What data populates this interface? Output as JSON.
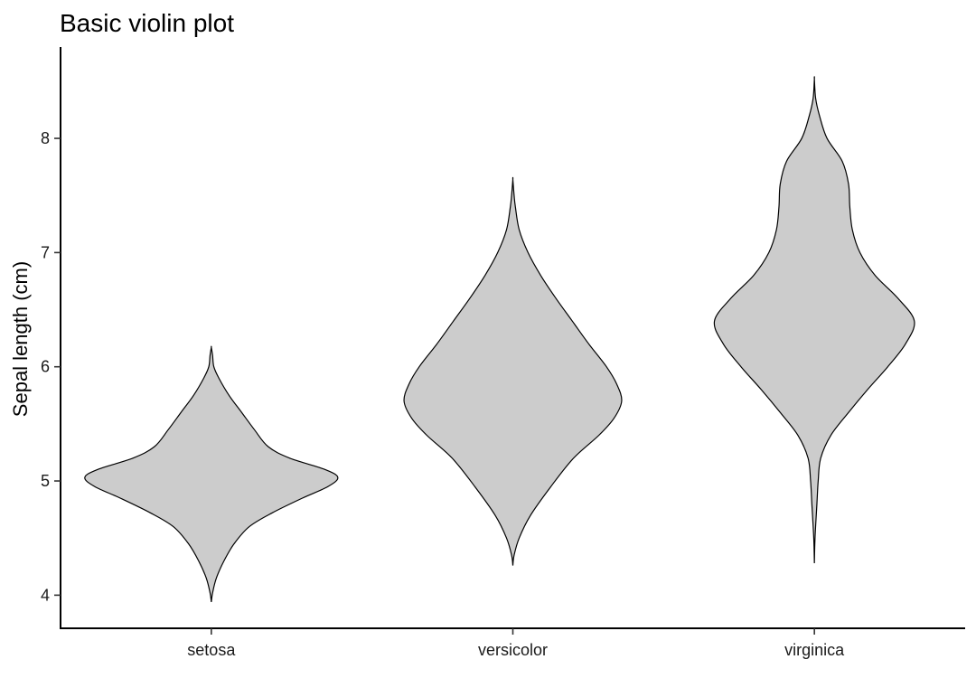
{
  "chart_data": {
    "type": "violin",
    "title": "Basic violin plot",
    "xlabel": "",
    "ylabel": "Sepal length (cm)",
    "ylim": [
      3.71,
      8.8
    ],
    "yticks": [
      4,
      5,
      6,
      7,
      8
    ],
    "grid": false,
    "legend": "none",
    "fill_color": "#cccccc",
    "stroke_color": "#000000",
    "categories": [
      "setosa",
      "versicolor",
      "virginica"
    ],
    "violins": [
      {
        "category": "setosa",
        "range": [
          4.3,
          5.8
        ],
        "profile": [
          [
            3.94,
            0.0
          ],
          [
            4.02,
            0.01
          ],
          [
            4.15,
            0.04
          ],
          [
            4.3,
            0.1
          ],
          [
            4.45,
            0.18
          ],
          [
            4.6,
            0.3
          ],
          [
            4.72,
            0.48
          ],
          [
            4.85,
            0.72
          ],
          [
            4.95,
            0.92
          ],
          [
            5.03,
            1.0
          ],
          [
            5.1,
            0.9
          ],
          [
            5.2,
            0.62
          ],
          [
            5.3,
            0.45
          ],
          [
            5.45,
            0.34
          ],
          [
            5.6,
            0.24
          ],
          [
            5.75,
            0.14
          ],
          [
            5.9,
            0.06
          ],
          [
            6.0,
            0.02
          ],
          [
            6.1,
            0.01
          ],
          [
            6.17,
            0.0
          ]
        ]
      },
      {
        "category": "versicolor",
        "range": [
          4.9,
          7.0
        ],
        "profile": [
          [
            4.26,
            0.0
          ],
          [
            4.35,
            0.01
          ],
          [
            4.5,
            0.05
          ],
          [
            4.7,
            0.14
          ],
          [
            4.95,
            0.3
          ],
          [
            5.2,
            0.48
          ],
          [
            5.4,
            0.68
          ],
          [
            5.55,
            0.8
          ],
          [
            5.7,
            0.86
          ],
          [
            5.85,
            0.82
          ],
          [
            6.0,
            0.74
          ],
          [
            6.2,
            0.6
          ],
          [
            6.4,
            0.47
          ],
          [
            6.6,
            0.34
          ],
          [
            6.8,
            0.22
          ],
          [
            7.0,
            0.12
          ],
          [
            7.2,
            0.05
          ],
          [
            7.4,
            0.02
          ],
          [
            7.5,
            0.01
          ],
          [
            7.64,
            0.0
          ]
        ]
      },
      {
        "category": "virginica",
        "range": [
          4.9,
          7.9
        ],
        "profile": [
          [
            4.28,
            0.0
          ],
          [
            4.5,
            0.005
          ],
          [
            4.8,
            0.02
          ],
          [
            5.0,
            0.03
          ],
          [
            5.2,
            0.05
          ],
          [
            5.4,
            0.13
          ],
          [
            5.6,
            0.27
          ],
          [
            5.8,
            0.42
          ],
          [
            6.0,
            0.58
          ],
          [
            6.2,
            0.72
          ],
          [
            6.4,
            0.79
          ],
          [
            6.6,
            0.66
          ],
          [
            6.8,
            0.48
          ],
          [
            7.0,
            0.36
          ],
          [
            7.2,
            0.3
          ],
          [
            7.4,
            0.28
          ],
          [
            7.6,
            0.27
          ],
          [
            7.8,
            0.22
          ],
          [
            8.0,
            0.1
          ],
          [
            8.2,
            0.04
          ],
          [
            8.35,
            0.01
          ],
          [
            8.52,
            0.0
          ]
        ]
      }
    ]
  }
}
